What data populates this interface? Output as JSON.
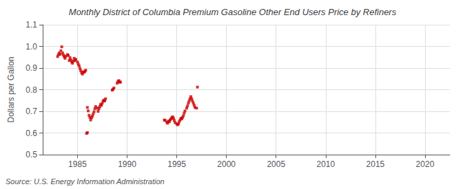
{
  "chart_data": {
    "type": "scatter",
    "title": "Monthly District of Columbia Premium Gasoline Other End Users Price by Refiners",
    "ylabel": "Dollars per Gallon",
    "annotation": "Source: U.S. Energy Information Administration",
    "color": "#cc0000",
    "marker": "square",
    "grid": true,
    "xlim": [
      1981.5,
      2022.5
    ],
    "ylim": [
      0.5,
      1.1
    ],
    "xticks": [
      1985,
      1990,
      1995,
      2000,
      2005,
      2010,
      2015,
      2020
    ],
    "yticks": [
      0.5,
      0.6,
      0.7,
      0.8,
      0.9,
      {
        "value": 1.0,
        "label": "1.0"
      },
      1.1
    ],
    "x": [
      1983.0,
      1983.08,
      1983.17,
      1983.25,
      1983.33,
      1983.42,
      1983.5,
      1983.58,
      1983.67,
      1983.75,
      1983.83,
      1984.0,
      1984.08,
      1984.17,
      1984.25,
      1984.33,
      1984.42,
      1984.5,
      1984.58,
      1984.67,
      1984.75,
      1984.83,
      1985.0,
      1985.08,
      1985.17,
      1985.25,
      1985.33,
      1985.42,
      1985.5,
      1985.58,
      1985.67,
      1985.75,
      1985.83,
      1986.0,
      1986.08,
      1986.17,
      1986.25,
      1986.33,
      1986.42,
      1986.5,
      1986.58,
      1986.67,
      1986.75,
      1986.83,
      1987.0,
      1987.08,
      1987.17,
      1987.25,
      1987.33,
      1987.42,
      1987.5,
      1987.58,
      1987.67,
      1987.75,
      1987.83,
      1985.92,
      1986.0,
      1988.5,
      1988.58,
      1988.67,
      1989.0,
      1989.08,
      1989.17,
      1989.25,
      1989.33,
      1993.75,
      1993.83,
      1994.0,
      1994.08,
      1994.17,
      1994.25,
      1994.33,
      1994.42,
      1994.5,
      1994.58,
      1994.67,
      1994.75,
      1994.83,
      1995.0,
      1995.08,
      1995.17,
      1995.25,
      1995.33,
      1995.42,
      1995.5,
      1995.58,
      1995.67,
      1995.75,
      1995.83,
      1996.0,
      1996.08,
      1996.17,
      1996.25,
      1996.33,
      1996.42,
      1996.5,
      1996.58,
      1996.67,
      1996.75,
      1996.83,
      1997.0,
      1997.08
    ],
    "values": [
      0.953,
      0.962,
      0.97,
      0.963,
      0.98,
      0.998,
      0.97,
      0.96,
      0.952,
      0.945,
      0.955,
      0.962,
      0.958,
      0.935,
      0.948,
      0.938,
      0.928,
      0.922,
      0.932,
      0.945,
      0.935,
      0.94,
      0.928,
      0.918,
      0.91,
      0.898,
      0.888,
      0.878,
      0.872,
      0.882,
      0.88,
      0.885,
      0.89,
      0.718,
      0.702,
      0.682,
      0.672,
      0.66,
      0.67,
      0.678,
      0.688,
      0.698,
      0.712,
      0.722,
      0.715,
      0.7,
      0.712,
      0.722,
      0.732,
      0.728,
      0.738,
      0.748,
      0.752,
      0.748,
      0.758,
      0.598,
      0.602,
      0.798,
      0.802,
      0.808,
      0.83,
      0.838,
      0.842,
      0.835,
      0.835,
      0.66,
      0.658,
      0.65,
      0.645,
      0.655,
      0.652,
      0.66,
      0.665,
      0.67,
      0.675,
      0.668,
      0.658,
      0.648,
      0.642,
      0.638,
      0.642,
      0.652,
      0.66,
      0.668,
      0.665,
      0.672,
      0.68,
      0.692,
      0.702,
      0.715,
      0.725,
      0.738,
      0.748,
      0.758,
      0.768,
      0.758,
      0.748,
      0.738,
      0.728,
      0.718,
      0.715,
      0.812
    ]
  }
}
